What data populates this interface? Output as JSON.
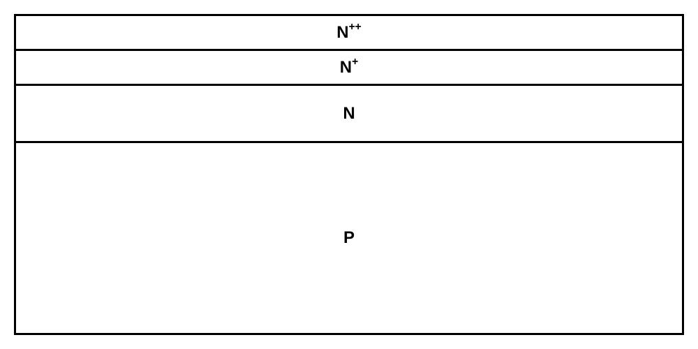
{
  "diagram": {
    "type": "layered-cross-section",
    "background_color": "#ffffff",
    "border_color": "#000000",
    "border_width": 3,
    "text_color": "#000000",
    "font_size": 24,
    "font_weight": "bold",
    "layers": [
      {
        "label_base": "N",
        "label_superscript": "++",
        "height_percent": 11
      },
      {
        "label_base": "N",
        "label_superscript": "+",
        "height_percent": 11
      },
      {
        "label_base": "N",
        "label_superscript": "",
        "height_percent": 18
      },
      {
        "label_base": "P",
        "label_superscript": "",
        "height_percent": 60
      }
    ]
  }
}
